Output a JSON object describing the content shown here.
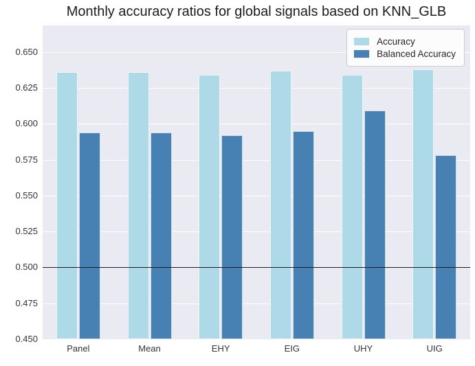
{
  "chart_data": {
    "type": "bar",
    "title": "Monthly accuracy ratios for global signals based on KNN_GLB",
    "xlabel": "",
    "ylabel": "",
    "categories": [
      "Panel",
      "Mean",
      "EHY",
      "EIG",
      "UHY",
      "UIG"
    ],
    "series": [
      {
        "name": "Accuracy",
        "color": "#aed9e6",
        "values": [
          0.636,
          0.636,
          0.634,
          0.637,
          0.634,
          0.638
        ]
      },
      {
        "name": "Balanced Accuracy",
        "color": "#4781b4",
        "values": [
          0.594,
          0.594,
          0.592,
          0.595,
          0.609,
          0.578
        ]
      }
    ],
    "ylim": [
      0.45,
      0.6685
    ],
    "yticks": [
      0.45,
      0.475,
      0.5,
      0.525,
      0.55,
      0.575,
      0.6,
      0.625,
      0.65
    ],
    "reference_line": {
      "y": 0.5,
      "color": "#1c1c1c"
    },
    "grid": true,
    "gridline_color": "#ffffff",
    "plot_background": "#eaeaf2",
    "legend_position": "upper right"
  }
}
